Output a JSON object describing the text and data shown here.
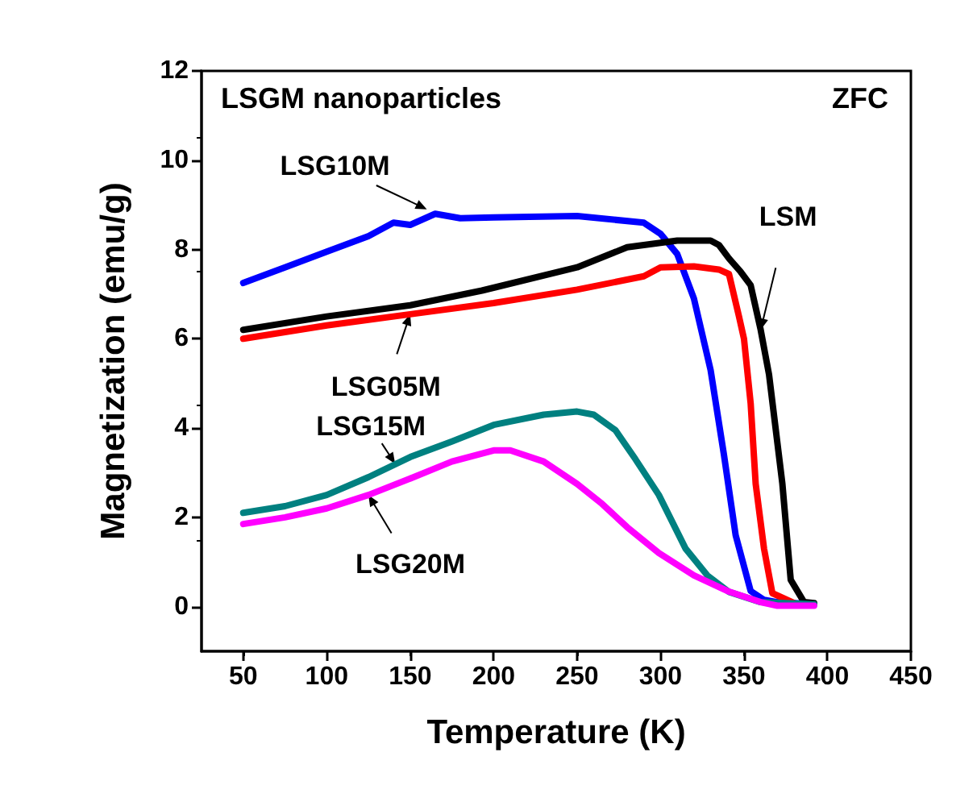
{
  "chart_data": {
    "type": "line",
    "xlabel": "Temperature (K)",
    "ylabel": "Magnetization (emu/g)",
    "xlim": [
      25,
      450
    ],
    "xticks": [
      50,
      100,
      150,
      200,
      250,
      300,
      350,
      400,
      450
    ],
    "ylim": [
      -1,
      12
    ],
    "yticks": [
      0,
      2,
      4,
      6,
      8,
      10,
      12
    ],
    "grid": false,
    "marker": "none",
    "line_style": "solid",
    "annotations": [
      "LSGM nanoparticles",
      "ZFC",
      {
        "text": "LSG10M",
        "x": 160,
        "y": 8.9
      },
      {
        "text": "LSM",
        "x": 360,
        "y": 6.2
      },
      {
        "text": "LSG05M",
        "x": 150,
        "y": 6.55
      },
      {
        "text": "LSG15M",
        "x": 141,
        "y": 3.2
      },
      {
        "text": "LSG20M",
        "x": 125,
        "y": 2.5
      }
    ],
    "series": [
      {
        "color": "#0000ff",
        "x": [
          50,
          75,
          100,
          125,
          140,
          150,
          165,
          180,
          200,
          250,
          290,
          300,
          310,
          320,
          330,
          338,
          345,
          354,
          362,
          370,
          392
        ],
        "values": [
          7.25,
          7.6,
          7.95,
          8.3,
          8.6,
          8.55,
          8.8,
          8.7,
          8.72,
          8.75,
          8.6,
          8.35,
          7.9,
          6.9,
          5.3,
          3.4,
          1.6,
          0.35,
          0.15,
          0.1,
          0.05
        ]
      },
      {
        "color": "#000000",
        "x": [
          50,
          100,
          150,
          193,
          250,
          280,
          300,
          310,
          330,
          335,
          341,
          348,
          354,
          360,
          365,
          373,
          378,
          386,
          392
        ],
        "values": [
          6.2,
          6.5,
          6.75,
          7.08,
          7.6,
          8.05,
          8.15,
          8.2,
          8.2,
          8.1,
          7.8,
          7.5,
          7.2,
          6.2,
          5.2,
          2.75,
          0.6,
          0.1,
          0.08
        ]
      },
      {
        "color": "#ff0000",
        "x": [
          50,
          100,
          150,
          200,
          250,
          290,
          300,
          320,
          335,
          341,
          347,
          350,
          354,
          357,
          362,
          367,
          380
        ],
        "values": [
          6.0,
          6.3,
          6.55,
          6.8,
          7.1,
          7.4,
          7.6,
          7.62,
          7.55,
          7.45,
          6.5,
          6.0,
          4.55,
          2.75,
          1.3,
          0.3,
          0.08
        ]
      },
      {
        "color": "#008080",
        "x": [
          50,
          75,
          100,
          125,
          150,
          175,
          200,
          230,
          250,
          260,
          273,
          285,
          299,
          315,
          328,
          341,
          360,
          392
        ],
        "values": [
          2.1,
          2.25,
          2.5,
          2.9,
          3.35,
          3.7,
          4.07,
          4.3,
          4.37,
          4.3,
          3.95,
          3.3,
          2.5,
          1.3,
          0.7,
          0.33,
          0.1,
          0.05
        ]
      },
      {
        "color": "#ff00ff",
        "x": [
          50,
          75,
          100,
          125,
          150,
          175,
          200,
          210,
          230,
          250,
          265,
          280,
          299,
          320,
          340,
          360,
          370,
          392
        ],
        "values": [
          1.85,
          2.0,
          2.2,
          2.5,
          2.87,
          3.25,
          3.5,
          3.5,
          3.25,
          2.75,
          2.3,
          1.78,
          1.2,
          0.7,
          0.35,
          0.1,
          0.02,
          0.02
        ]
      }
    ]
  }
}
